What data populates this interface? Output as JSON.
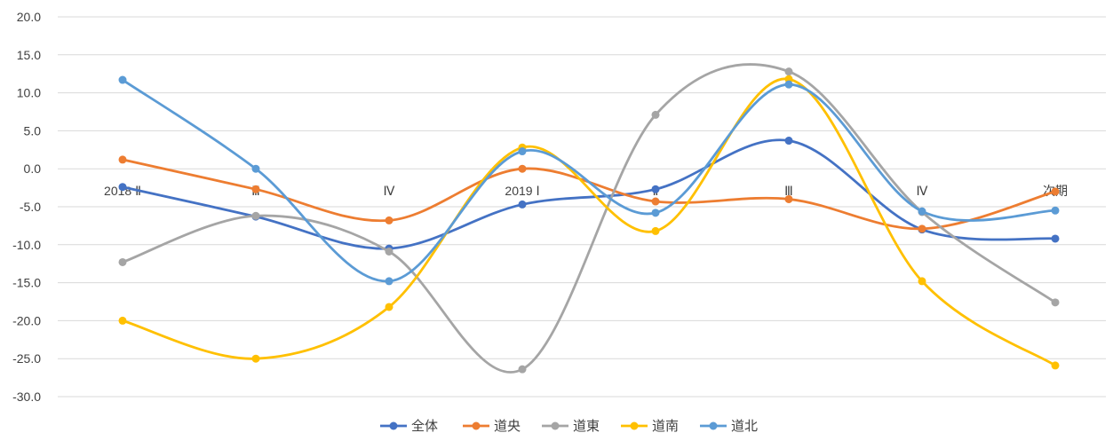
{
  "chart_data": {
    "type": "line",
    "smooth": true,
    "categories": [
      "2018 Ⅱ",
      "Ⅲ",
      "Ⅳ",
      "2019 Ⅰ",
      "Ⅱ",
      "Ⅲ",
      "Ⅳ",
      "次期"
    ],
    "ylim": [
      -30,
      20
    ],
    "yticks": [
      "20.0",
      "15.0",
      "10.0",
      "5.0",
      "0.0",
      "-5.0",
      "-10.0",
      "-15.0",
      "-20.0",
      "-25.0",
      "-30.0"
    ],
    "ytick_values": [
      20,
      15,
      10,
      5,
      0,
      -5,
      -10,
      -15,
      -20,
      -25,
      -30
    ],
    "grid": true,
    "legend_position": "bottom",
    "title": "",
    "xlabel": "",
    "ylabel": "",
    "series": [
      {
        "name": "全体",
        "color": "#4472c4",
        "values": [
          -2.4,
          -6.3,
          -10.5,
          -4.7,
          -2.7,
          3.7,
          -8.0,
          -9.2
        ]
      },
      {
        "name": "道央",
        "color": "#ed7d31",
        "values": [
          1.2,
          -2.7,
          -6.8,
          0.0,
          -4.3,
          -4.0,
          -7.9,
          -3.0
        ]
      },
      {
        "name": "道東",
        "color": "#a5a5a5",
        "values": [
          -12.3,
          -6.2,
          -10.9,
          -26.4,
          7.1,
          12.8,
          -5.7,
          -17.6
        ]
      },
      {
        "name": "道南",
        "color": "#ffc000",
        "values": [
          -20.0,
          -25.0,
          -18.2,
          2.8,
          -8.2,
          11.8,
          -14.8,
          -25.9
        ]
      },
      {
        "name": "道北",
        "color": "#5b9bd5",
        "values": [
          11.7,
          0.0,
          -14.8,
          2.3,
          -5.8,
          11.1,
          -5.6,
          -5.5
        ]
      }
    ]
  }
}
